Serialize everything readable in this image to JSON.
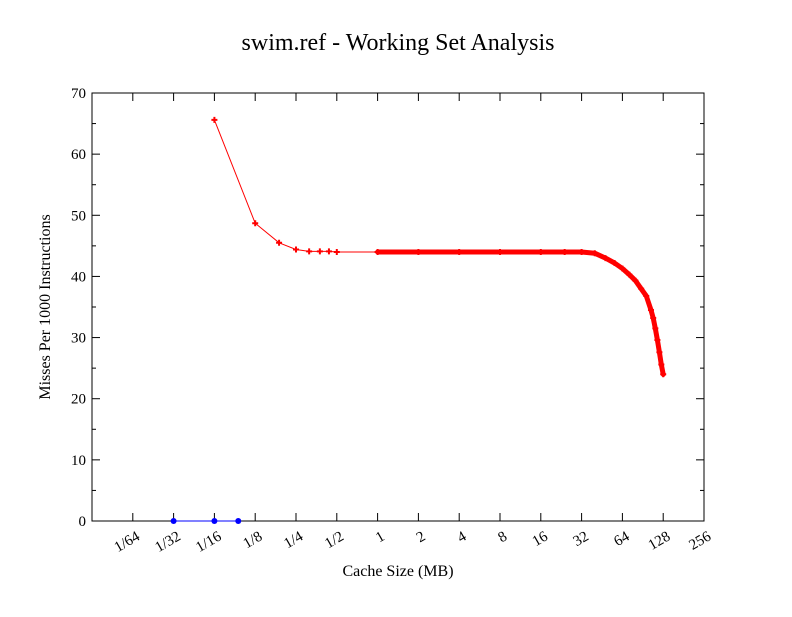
{
  "chart_data": {
    "type": "line",
    "title": "swim.ref - Working Set Analysis",
    "xlabel": "Cache Size (MB)",
    "ylabel": "Misses Per 1000 Instructions",
    "x_scale": "log2",
    "xlim": [
      "1/128",
      "256"
    ],
    "ylim": [
      0,
      70
    ],
    "x_ticks": [
      "1/64",
      "1/32",
      "1/16",
      "1/8",
      "1/4",
      "1/2",
      "1",
      "2",
      "4",
      "8",
      "16",
      "32",
      "64",
      "128",
      "256"
    ],
    "x_tick_values": [
      0.015625,
      0.03125,
      0.0625,
      0.125,
      0.25,
      0.5,
      1,
      2,
      4,
      8,
      16,
      32,
      64,
      128,
      256
    ],
    "y_ticks": [
      "0",
      "10",
      "20",
      "30",
      "40",
      "50",
      "60",
      "70"
    ],
    "y_tick_values": [
      0,
      10,
      20,
      30,
      40,
      50,
      60,
      70
    ],
    "grid": false,
    "legend": "none",
    "series": [
      {
        "color": "#ff0000",
        "marker": "plus",
        "x": [
          0.0625,
          0.125,
          0.1875,
          0.25,
          0.3125,
          0.375,
          0.4375,
          0.5,
          1,
          2,
          4,
          8,
          16,
          24,
          32,
          40,
          48,
          56,
          64,
          72,
          80,
          88,
          96,
          104,
          108,
          112,
          116,
          120,
          124,
          128
        ],
        "y": [
          65.6,
          48.7,
          45.5,
          44.4,
          44.1,
          44.1,
          44.1,
          44.0,
          44.0,
          44.0,
          44.0,
          44.0,
          44.0,
          44.0,
          44.0,
          43.8,
          43.0,
          42.2,
          41.3,
          40.3,
          39.3,
          38.0,
          36.8,
          34.5,
          33.2,
          31.5,
          29.6,
          27.6,
          25.6,
          24.0
        ]
      },
      {
        "color": "#0000ff",
        "marker": "dot",
        "x": [
          0.03125,
          0.0625,
          0.09375
        ],
        "y": [
          0,
          0,
          0
        ]
      }
    ]
  }
}
